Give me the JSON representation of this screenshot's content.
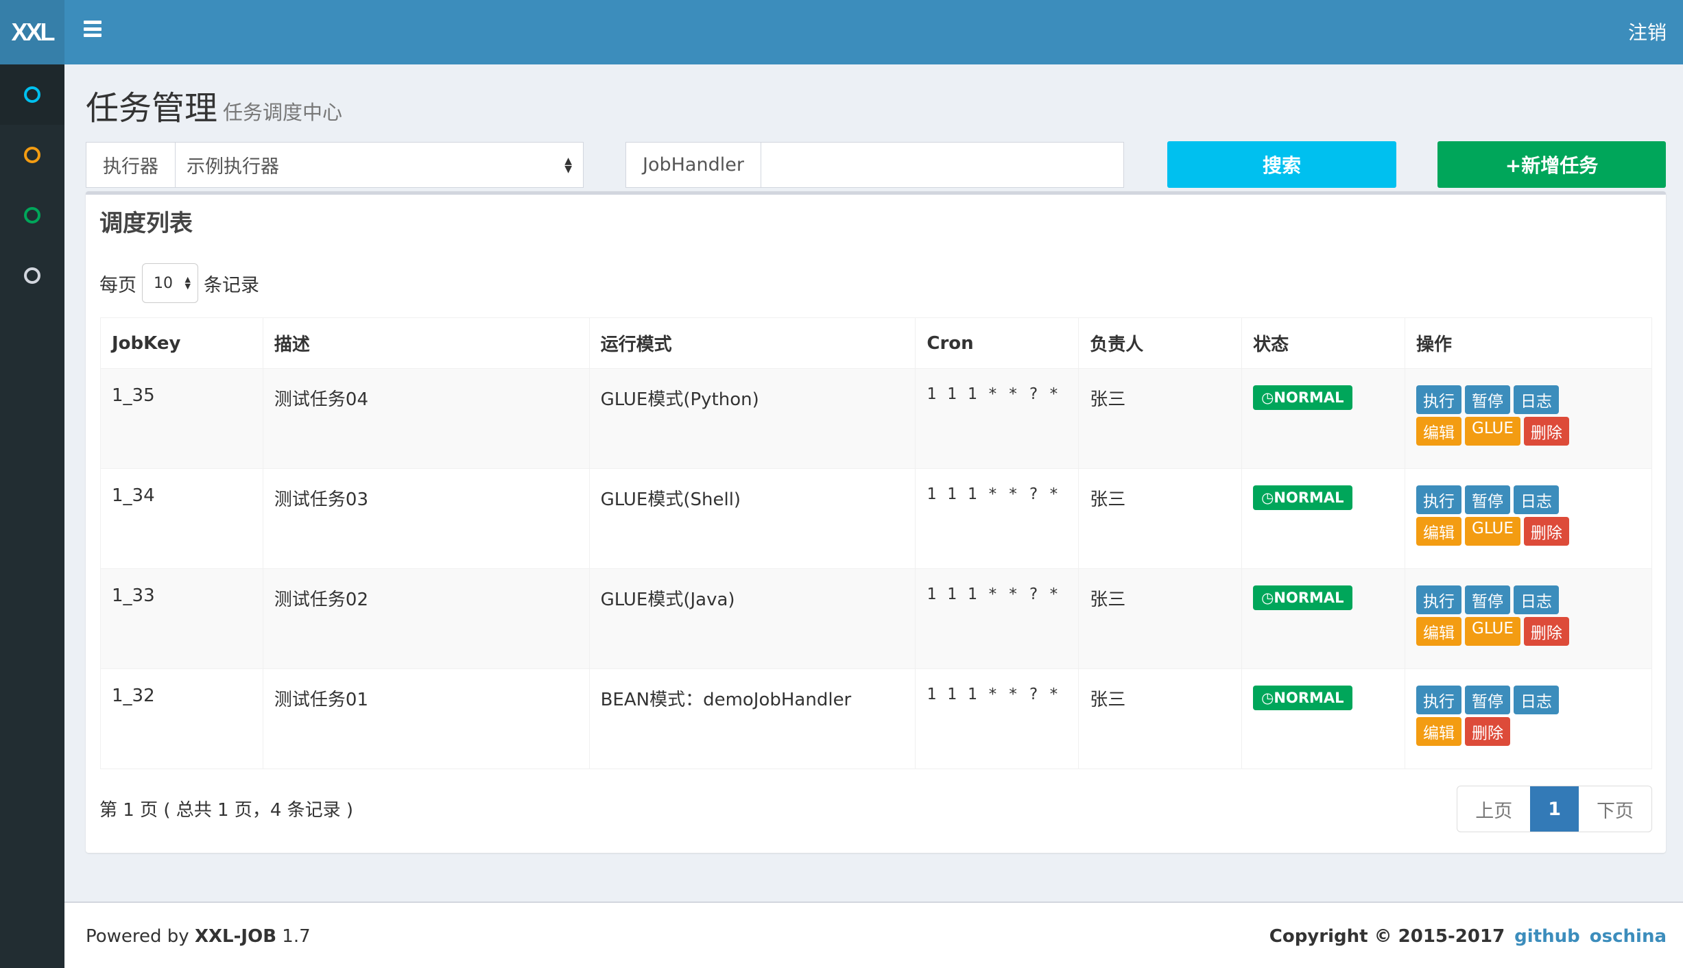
{
  "app": {
    "logo": "XXL",
    "logout": "注销"
  },
  "sidebar": {
    "items": [
      {
        "icon": "circle-icon",
        "color": "#00c0ef"
      },
      {
        "icon": "circle-icon",
        "color": "#f39c12"
      },
      {
        "icon": "circle-icon",
        "color": "#00a65a"
      },
      {
        "icon": "circle-icon",
        "color": "#d2d6de"
      }
    ]
  },
  "page": {
    "title": "任务管理",
    "subtitle": "任务调度中心"
  },
  "filters": {
    "executor_label": "执行器",
    "executor_value": "示例执行器",
    "jobhandler_label": "JobHandler",
    "jobhandler_value": "",
    "search": "搜索",
    "add": "+新增任务"
  },
  "list": {
    "title": "调度列表",
    "per_page_prefix": "每页",
    "per_page": "10",
    "per_page_suffix": "条记录",
    "columns": [
      "JobKey",
      "描述",
      "运行模式",
      "Cron",
      "负责人",
      "状态",
      "操作"
    ],
    "rows": [
      {
        "key": "1_35",
        "desc": "测试任务04",
        "mode": "GLUE模式(Python)",
        "cron": "1 1 1 * * ? *",
        "owner": "张三",
        "status": "NORMAL"
      },
      {
        "key": "1_34",
        "desc": "测试任务03",
        "mode": "GLUE模式(Shell)",
        "cron": "1 1 1 * * ? *",
        "owner": "张三",
        "status": "NORMAL"
      },
      {
        "key": "1_33",
        "desc": "测试任务02",
        "mode": "GLUE模式(Java)",
        "cron": "1 1 1 * * ? *",
        "owner": "张三",
        "status": "NORMAL"
      },
      {
        "key": "1_32",
        "desc": "测试任务01",
        "mode": "BEAN模式：demoJobHandler",
        "cron": "1 1 1 * * ? *",
        "owner": "张三",
        "status": "NORMAL"
      }
    ],
    "actions": {
      "run": "执行",
      "pause": "暂停",
      "log": "日志",
      "edit": "编辑",
      "glue": "GLUE",
      "delete": "删除"
    },
    "info": "第 1 页 ( 总共 1 页，4 条记录 )",
    "pager": {
      "prev": "上页",
      "current": "1",
      "next": "下页"
    }
  },
  "footer": {
    "powered_prefix": "Powered by ",
    "product": "XXL-JOB",
    "version": " 1.7",
    "copyright": "Copyright © 2015-2017",
    "github": "github",
    "oschina": "oschina"
  },
  "colors": {
    "primary": "#3c8dbc",
    "success": "#00a65a",
    "warning": "#f39c12",
    "danger": "#dd4b39",
    "info": "#00c0ef"
  }
}
